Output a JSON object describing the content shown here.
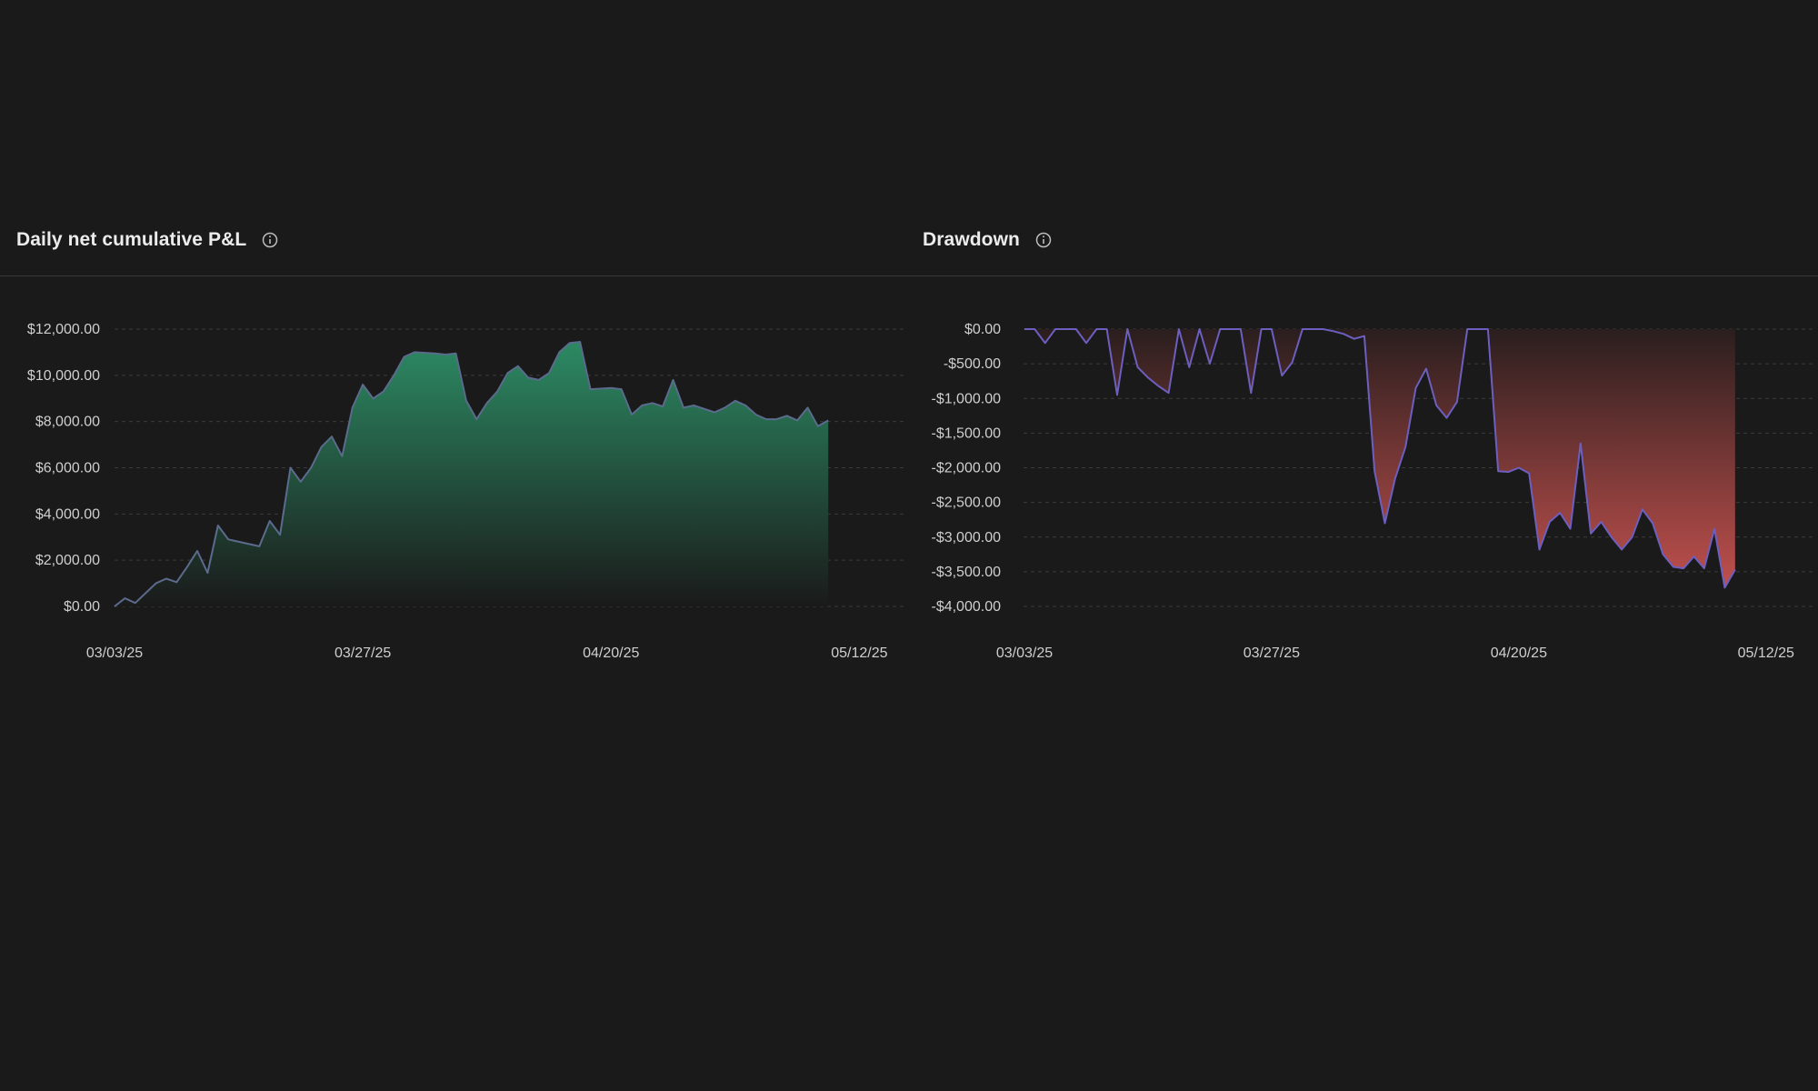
{
  "colors": {
    "background": "#1a1a1a",
    "pnl_line": "#5b6b8c",
    "pnl_fill_top": "#2c8a63",
    "pnl_fill_bottom": "#1a1a1a",
    "dd_line": "#6c5fbf",
    "dd_fill_top": "#2a1e1e",
    "dd_fill_bottom": "#c0504d",
    "grid": "#3b3b3b"
  },
  "panels": {
    "pnl": {
      "title": "Daily net cumulative P&L",
      "info_icon": "info-icon"
    },
    "drawdown": {
      "title": "Drawdown",
      "info_icon": "info-icon"
    }
  },
  "chart_data": [
    {
      "type": "area",
      "title": "Daily net cumulative P&L",
      "xlabel": "",
      "ylabel": "",
      "x_tick_labels": [
        "03/03/25",
        "03/27/25",
        "04/20/25",
        "05/12/25"
      ],
      "x_tick_indices": [
        0,
        24,
        48,
        72
      ],
      "y_tick_labels": [
        "$0.00",
        "$2,000.00",
        "$4,000.00",
        "$6,000.00",
        "$8,000.00",
        "$10,000.00",
        "$12,000.00"
      ],
      "y_tick_values": [
        0,
        2000,
        4000,
        6000,
        8000,
        10000,
        12000
      ],
      "ylim": [
        0,
        12000
      ],
      "x_count": 92,
      "grid": true,
      "series": [
        {
          "name": "Cumulative P&L",
          "points": [
            [
              0,
              0
            ],
            [
              1,
              350
            ],
            [
              2,
              150
            ],
            [
              4,
              1000
            ],
            [
              5,
              1200
            ],
            [
              6,
              1050
            ],
            [
              7,
              1700
            ],
            [
              8,
              2400
            ],
            [
              9,
              1450
            ],
            [
              10,
              3500
            ],
            [
              11,
              2900
            ],
            [
              14,
              2600
            ],
            [
              15,
              3700
            ],
            [
              16,
              3100
            ],
            [
              17,
              6000
            ],
            [
              18,
              5400
            ],
            [
              19,
              6000
            ],
            [
              20,
              6900
            ],
            [
              21,
              7350
            ],
            [
              22,
              6500
            ],
            [
              23,
              8600
            ],
            [
              24,
              9600
            ],
            [
              25,
              9000
            ],
            [
              26,
              9300
            ],
            [
              27,
              10000
            ],
            [
              28,
              10800
            ],
            [
              29,
              11000
            ],
            [
              31,
              10950
            ],
            [
              32,
              10900
            ],
            [
              33,
              10950
            ],
            [
              34,
              8900
            ],
            [
              35,
              8100
            ],
            [
              36,
              8800
            ],
            [
              37,
              9300
            ],
            [
              38,
              10100
            ],
            [
              39,
              10400
            ],
            [
              40,
              9900
            ],
            [
              41,
              9800
            ],
            [
              42,
              10100
            ],
            [
              43,
              11000
            ],
            [
              44,
              11400
            ],
            [
              45,
              11450
            ],
            [
              46,
              9400
            ],
            [
              48,
              9450
            ],
            [
              49,
              9400
            ],
            [
              50,
              8300
            ],
            [
              51,
              8700
            ],
            [
              52,
              8800
            ],
            [
              53,
              8650
            ],
            [
              54,
              9800
            ],
            [
              55,
              8600
            ],
            [
              56,
              8700
            ],
            [
              58,
              8400
            ],
            [
              59,
              8600
            ],
            [
              60,
              8900
            ],
            [
              61,
              8700
            ],
            [
              62,
              8300
            ],
            [
              63,
              8100
            ],
            [
              64,
              8100
            ],
            [
              65,
              8250
            ],
            [
              66,
              8050
            ],
            [
              67,
              8600
            ],
            [
              68,
              7800
            ],
            [
              69,
              8050
            ]
          ]
        }
      ]
    },
    {
      "type": "area",
      "title": "Drawdown",
      "xlabel": "",
      "ylabel": "",
      "x_tick_labels": [
        "03/03/25",
        "03/27/25",
        "04/20/25",
        "05/12/25"
      ],
      "x_tick_indices": [
        0,
        24,
        48,
        72
      ],
      "y_tick_labels": [
        "$0.00",
        "-$500.00",
        "-$1,000.00",
        "-$1,500.00",
        "-$2,000.00",
        "-$2,500.00",
        "-$3,000.00",
        "-$3,500.00",
        "-$4,000.00"
      ],
      "y_tick_values": [
        0,
        -500,
        -1000,
        -1500,
        -2000,
        -2500,
        -3000,
        -3500,
        -4000
      ],
      "ylim": [
        -4000,
        0
      ],
      "x_count": 92,
      "grid": true,
      "series": [
        {
          "name": "Drawdown",
          "points": [
            [
              0,
              0
            ],
            [
              1,
              0
            ],
            [
              2,
              -200
            ],
            [
              3,
              0
            ],
            [
              5,
              0
            ],
            [
              6,
              -200
            ],
            [
              7,
              0
            ],
            [
              8,
              0
            ],
            [
              9,
              -950
            ],
            [
              10,
              0
            ],
            [
              11,
              -550
            ],
            [
              12,
              -700
            ],
            [
              13,
              -820
            ],
            [
              14,
              -920
            ],
            [
              15,
              0
            ],
            [
              16,
              -550
            ],
            [
              17,
              0
            ],
            [
              18,
              -500
            ],
            [
              19,
              0
            ],
            [
              21,
              0
            ],
            [
              22,
              -920
            ],
            [
              23,
              0
            ],
            [
              24,
              0
            ],
            [
              25,
              -670
            ],
            [
              26,
              -480
            ],
            [
              27,
              0
            ],
            [
              29,
              0
            ],
            [
              30,
              -30
            ],
            [
              31,
              -70
            ],
            [
              32,
              -140
            ],
            [
              33,
              -100
            ],
            [
              34,
              -2050
            ],
            [
              35,
              -2800
            ],
            [
              36,
              -2150
            ],
            [
              37,
              -1700
            ],
            [
              38,
              -850
            ],
            [
              39,
              -570
            ],
            [
              40,
              -1100
            ],
            [
              41,
              -1280
            ],
            [
              42,
              -1050
            ],
            [
              43,
              0
            ],
            [
              45,
              0
            ],
            [
              46,
              -2050
            ],
            [
              47,
              -2060
            ],
            [
              48,
              -2000
            ],
            [
              49,
              -2080
            ],
            [
              50,
              -3180
            ],
            [
              51,
              -2780
            ],
            [
              52,
              -2650
            ],
            [
              53,
              -2880
            ],
            [
              54,
              -1650
            ],
            [
              55,
              -2950
            ],
            [
              56,
              -2780
            ],
            [
              57,
              -3000
            ],
            [
              58,
              -3180
            ],
            [
              59,
              -3000
            ],
            [
              60,
              -2600
            ],
            [
              61,
              -2800
            ],
            [
              62,
              -3250
            ],
            [
              63,
              -3430
            ],
            [
              64,
              -3450
            ],
            [
              65,
              -3280
            ],
            [
              66,
              -3450
            ],
            [
              67,
              -2880
            ],
            [
              68,
              -3730
            ],
            [
              69,
              -3470
            ]
          ]
        }
      ]
    }
  ]
}
